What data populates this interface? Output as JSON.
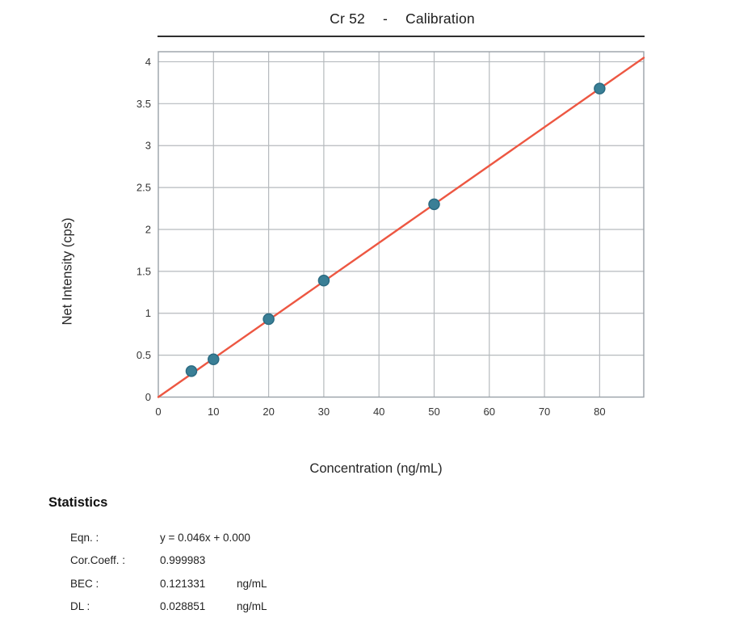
{
  "header": {
    "element": "Cr 52",
    "separator": "-",
    "title": "Calibration"
  },
  "chart_data": {
    "type": "scatter",
    "title": "Cr 52 - Calibration",
    "xlabel": "Concentration (ng/mL)",
    "ylabel": "Net Intensity (cps)",
    "xlim": [
      0,
      88
    ],
    "ylim": [
      0,
      4.12
    ],
    "x_ticks": [
      0,
      10,
      20,
      30,
      40,
      50,
      60,
      70,
      80
    ],
    "y_ticks": [
      0,
      0.5,
      1,
      1.5,
      2,
      2.5,
      3,
      3.5,
      4
    ],
    "grid": true,
    "legend": "none",
    "points": {
      "x": [
        6,
        10,
        20,
        30,
        50,
        80
      ],
      "y": [
        0.31,
        0.45,
        0.93,
        1.39,
        2.3,
        3.68
      ]
    },
    "fit_line": {
      "slope": 0.046,
      "intercept": 0.0
    },
    "colors": {
      "line": "#ed5742",
      "marker_fill": "#3a7f96",
      "marker_stroke": "#2b6b82",
      "grid": "#b6babe",
      "border": "#9aa1a7"
    }
  },
  "stats": {
    "heading": "Statistics",
    "rows": [
      {
        "label": "Eqn. :",
        "value": "y = 0.046x + 0.000",
        "unit": ""
      },
      {
        "label": "Cor.Coeff. :",
        "value": "0.999983",
        "unit": ""
      },
      {
        "label": "BEC :",
        "value": "0.121331",
        "unit": "ng/mL"
      },
      {
        "label": "DL :",
        "value": "0.028851",
        "unit": "ng/mL"
      }
    ]
  }
}
